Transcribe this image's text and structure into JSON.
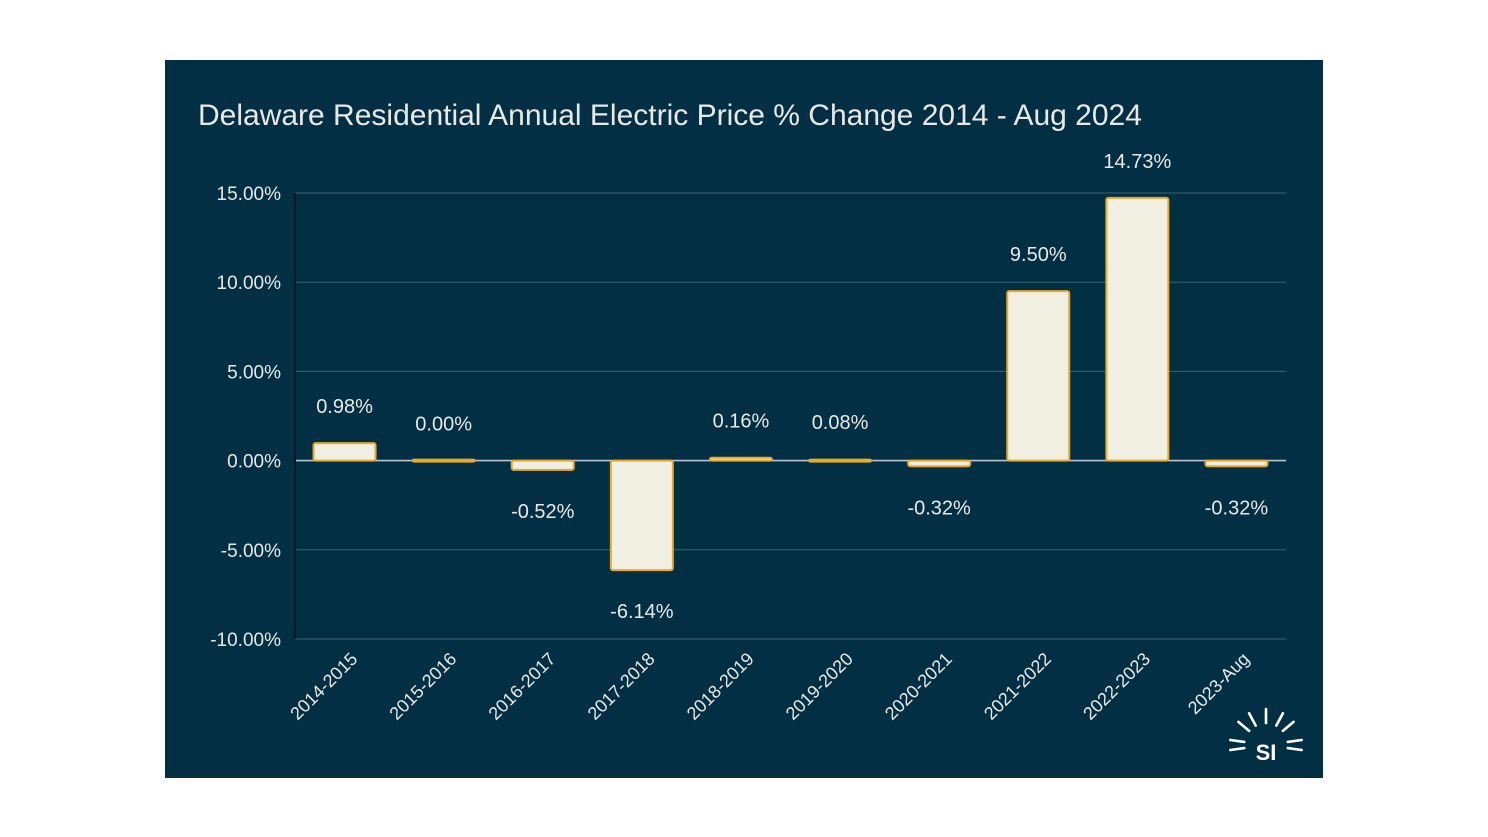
{
  "chart_data": {
    "type": "bar",
    "title": "Delaware Residential Annual Electric Price % Change 2014 - Aug 2024",
    "categories": [
      "2014-2015",
      "2015-2016",
      "2016-2017",
      "2017-2018",
      "2018-2019",
      "2019-2020",
      "2020-2021",
      "2021-2022",
      "2022-2023",
      "2023-Aug"
    ],
    "values": [
      0.98,
      0.0,
      -0.52,
      -6.14,
      0.16,
      0.08,
      -0.32,
      9.5,
      14.73,
      -0.32
    ],
    "data_labels": [
      "0.98%",
      "0.00%",
      "-0.52%",
      "-6.14%",
      "0.16%",
      "0.08%",
      "-0.32%",
      "9.50%",
      "14.73%",
      "-0.32%"
    ],
    "yticks": [
      15,
      10,
      5,
      0,
      -5,
      -10
    ],
    "ytick_labels": [
      "15.00%",
      "10.00%",
      "5.00%",
      "0.00%",
      "-5.00%",
      "-10.00%"
    ],
    "ylim": [
      -10,
      15
    ],
    "xlabel": "",
    "ylabel": "",
    "grid": true,
    "legend": "none",
    "colors": {
      "background": "#032f44",
      "bar_fill": "#f0efe2",
      "bar_stroke": "#e8a92b",
      "grid": "#3f6272",
      "text": "#e8e9e4"
    }
  },
  "logo": {
    "text": "SI"
  }
}
